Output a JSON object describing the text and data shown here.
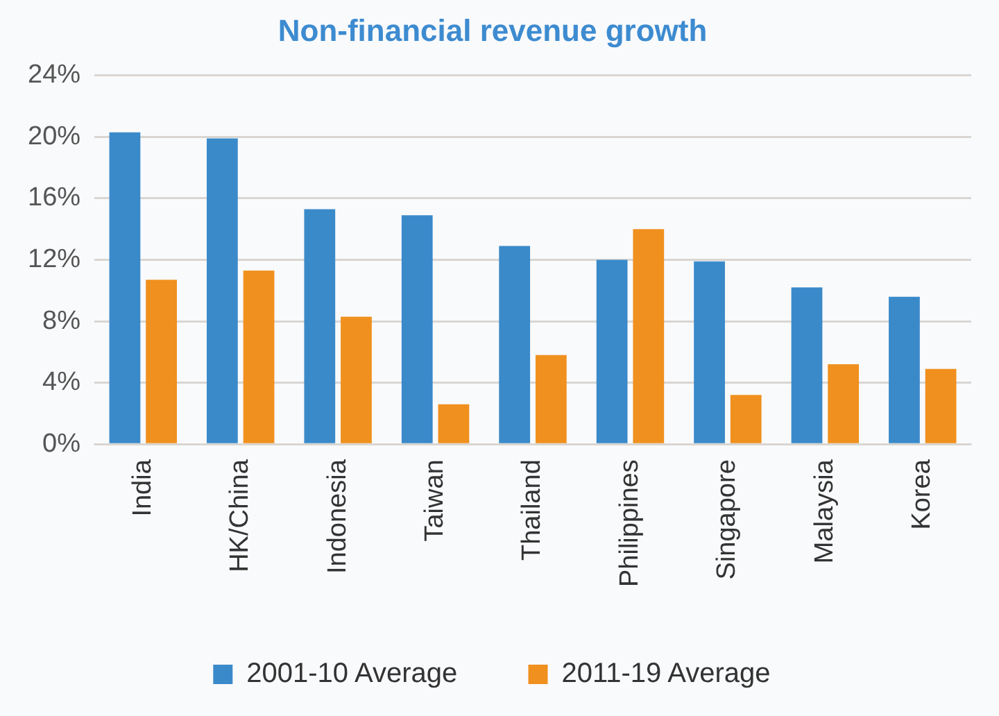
{
  "chart_data": {
    "type": "bar",
    "title": "Non-financial revenue growth",
    "categories": [
      "India",
      "HK/China",
      "Indonesia",
      "Taiwan",
      "Thailand",
      "Philippines",
      "Singapore",
      "Malaysia",
      "Korea"
    ],
    "series": [
      {
        "name": "2001-10 Average",
        "color": "#3a8aca",
        "values": [
          20.3,
          19.9,
          15.3,
          14.9,
          12.9,
          12.0,
          11.9,
          10.2,
          9.6
        ]
      },
      {
        "name": "2011-19 Average",
        "color": "#f0901e",
        "values": [
          10.7,
          11.3,
          8.3,
          2.6,
          5.8,
          14.0,
          3.2,
          5.2,
          4.9
        ]
      }
    ],
    "ylim": [
      0,
      24
    ],
    "yticks": [
      {
        "value": 0,
        "label": "0%"
      },
      {
        "value": 4,
        "label": "4%"
      },
      {
        "value": 8,
        "label": "8%"
      },
      {
        "value": 12,
        "label": "12%"
      },
      {
        "value": 16,
        "label": "16%"
      },
      {
        "value": 20,
        "label": "20%"
      },
      {
        "value": 24,
        "label": "24%"
      }
    ],
    "grid": "y",
    "legend": "bottom"
  }
}
